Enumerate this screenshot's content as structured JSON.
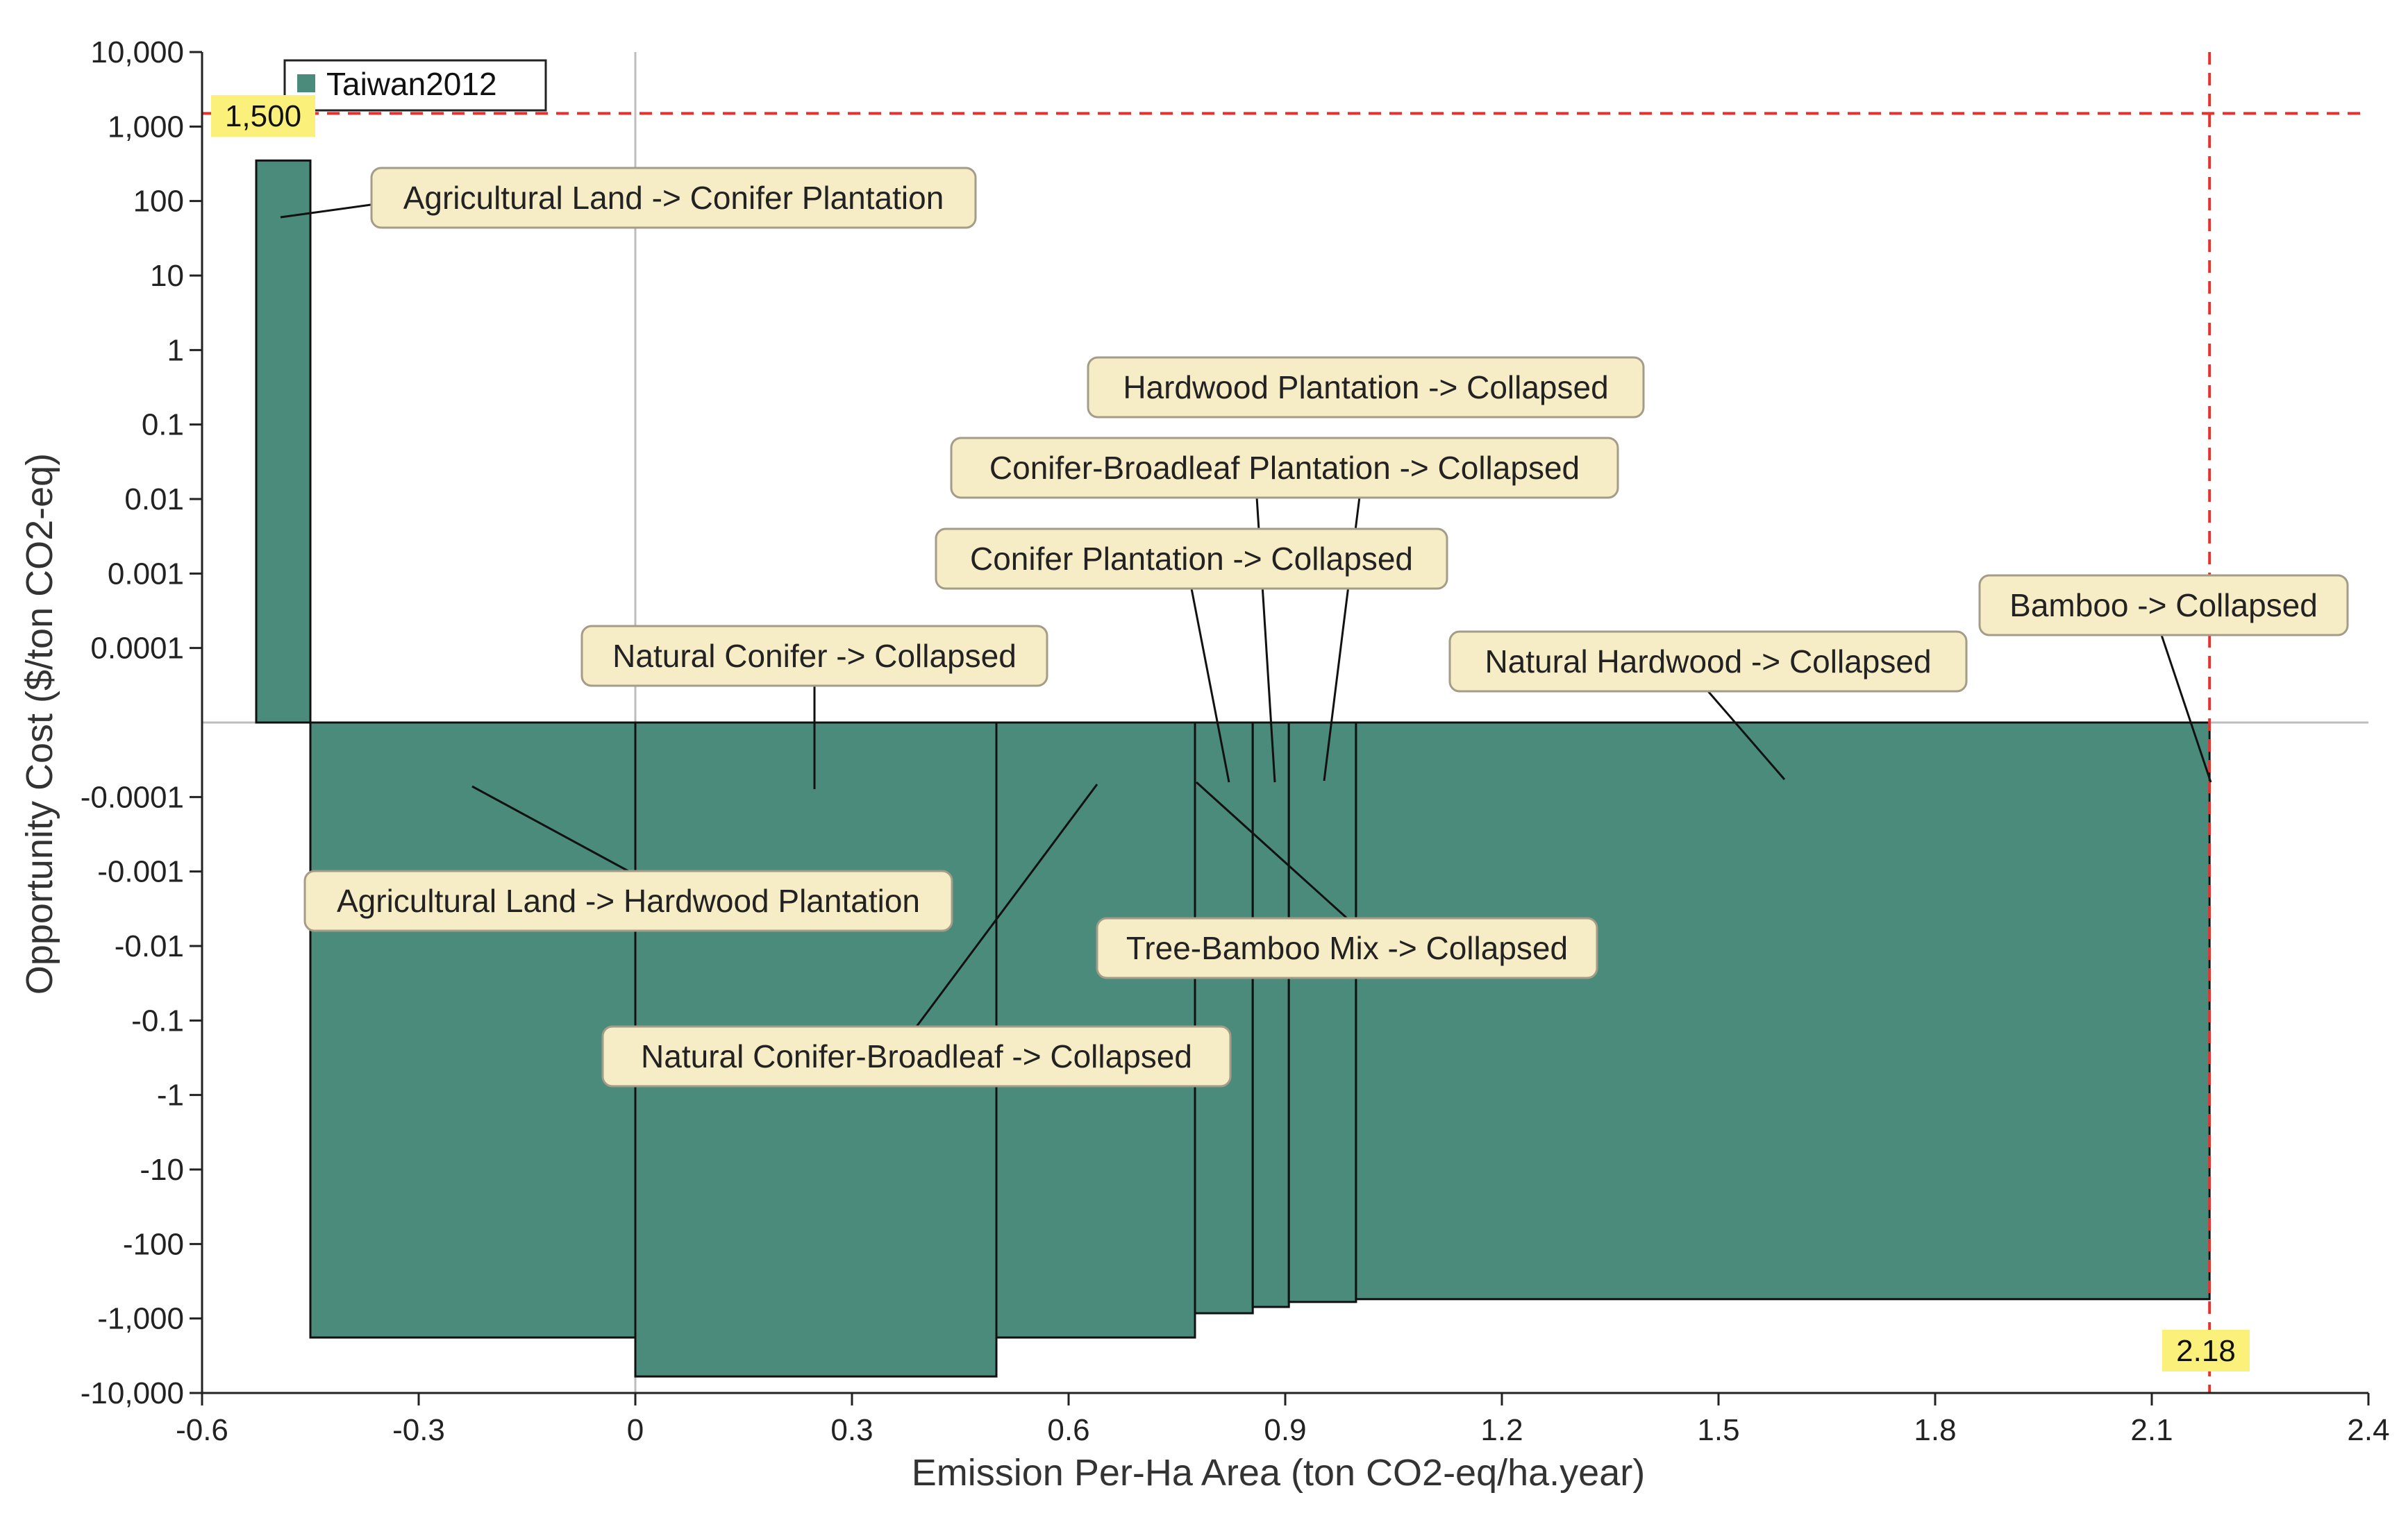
{
  "chart_data": {
    "type": "bar",
    "subtype": "marginal-abatement-cost-curve",
    "xlabel": "Emission Per-Ha Area (ton CO2-eq/ha.year)",
    "ylabel": "Opportunity Cost ($/ton CO2-eq)",
    "xlim": [
      -0.6,
      2.4
    ],
    "x_ticks": [
      "-0.6",
      "-0.3",
      "0",
      "0.3",
      "0.6",
      "0.9",
      "1.2",
      "1.5",
      "1.8",
      "2.1",
      "2.4"
    ],
    "y_scale": "symmetric-log",
    "y_ticks": [
      "10,000",
      "1,000",
      "100",
      "10",
      "1",
      "0.1",
      "0.01",
      "0.001",
      "0.0001",
      "-0.0001",
      "-0.001",
      "-0.01",
      "-0.1",
      "-1",
      "-10",
      "-100",
      "-1,000",
      "-10,000"
    ],
    "legend": {
      "entries": [
        "Taiwan2012"
      ],
      "position": "top-left"
    },
    "series": [
      {
        "name": "Taiwan2012",
        "color": "#4a8b7b",
        "bars": [
          {
            "x_start": -0.525,
            "x_end": -0.45,
            "value": 350
          },
          {
            "x_start": -0.45,
            "x_end": 0.0,
            "value": -1800
          },
          {
            "x_start": 0.0,
            "x_end": 0.5,
            "value": -6000
          },
          {
            "x_start": 0.5,
            "x_end": 0.775,
            "value": -1800
          },
          {
            "x_start": 0.775,
            "x_end": 0.855,
            "value": -850
          },
          {
            "x_start": 0.855,
            "x_end": 0.905,
            "value": -700
          },
          {
            "x_start": 0.905,
            "x_end": 0.998,
            "value": -600
          },
          {
            "x_start": 0.998,
            "x_end": 2.18,
            "value": -550
          }
        ]
      }
    ],
    "reference_lines": {
      "horizontal": {
        "value": 1500,
        "label": "1,500",
        "color": "#e8312f",
        "style": "dashed"
      },
      "vertical": {
        "value": 2.18,
        "label": "2.18",
        "color": "#e8312f",
        "style": "dashed"
      }
    },
    "annotations": [
      "Agricultural Land -> Conifer Plantation",
      "Hardwood Plantation -> Collapsed",
      "Conifer-Broadleaf Plantation -> Collapsed",
      "Conifer Plantation -> Collapsed",
      "Bamboo -> Collapsed",
      "Natural Conifer -> Collapsed",
      "Natural Hardwood -> Collapsed",
      "Agricultural Land -> Hardwood Plantation",
      "Tree-Bamboo Mix -> Collapsed",
      "Natural Conifer-Broadleaf -> Collapsed"
    ],
    "colors": {
      "bar": "#4a8b7b",
      "bar_edge": "#111111",
      "reference": "#e8312f",
      "annotation_fill": "#f6ecc5",
      "annotation_border": "#a39c88",
      "marker_fill": "#fbf07a",
      "zero_line": "#bdbdbd"
    }
  }
}
